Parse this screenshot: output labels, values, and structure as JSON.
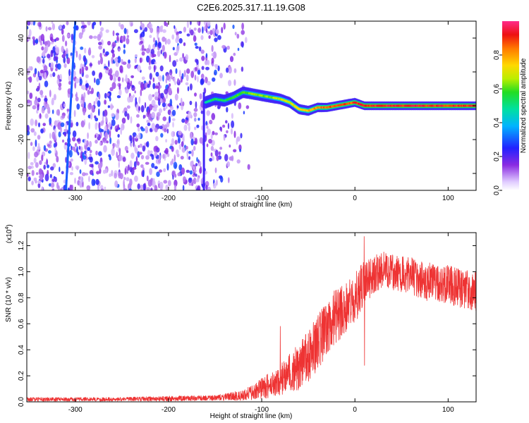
{
  "title": "C2E6.2025.317.11.19.G08",
  "chart_data": [
    {
      "type": "heatmap",
      "name": "spectrogram",
      "xlabel": "Height of straight line (km)",
      "ylabel": "Frequency (Hz)",
      "xlim": [
        -352,
        130
      ],
      "ylim": [
        -50,
        50
      ],
      "x_ticks": [
        -300,
        -200,
        -100,
        0,
        100
      ],
      "y_ticks": [
        -40,
        -20,
        0,
        20,
        40
      ],
      "colorbar": {
        "label": "Normalized spectral amplitude",
        "range": [
          0,
          1
        ],
        "ticks": [
          0.0,
          0.2,
          0.4,
          0.6,
          0.8
        ],
        "tick_labels": [
          "0.0",
          "0.2",
          "0.4",
          "0.6",
          "0.8"
        ]
      },
      "ridge": {
        "x": [
          -160,
          -150,
          -140,
          -130,
          -120,
          -110,
          -100,
          -90,
          -80,
          -70,
          -60,
          -50,
          -40,
          -30,
          -20,
          -10,
          0,
          10,
          30,
          60,
          90,
          130
        ],
        "y": [
          2,
          4,
          3,
          5,
          8,
          7,
          6,
          5,
          4,
          2,
          -2,
          -3,
          -1,
          -1,
          0,
          1,
          2,
          0,
          0,
          0,
          0,
          0
        ],
        "amp": [
          0.5,
          0.55,
          0.55,
          0.6,
          0.6,
          0.65,
          0.65,
          0.65,
          0.7,
          0.7,
          0.75,
          0.8,
          0.85,
          0.9,
          0.9,
          0.9,
          0.92,
          0.95,
          0.95,
          0.95,
          0.95,
          0.95
        ]
      },
      "diagonal_streak": {
        "x": [
          -310,
          -300
        ],
        "y": [
          -50,
          50
        ]
      },
      "vertical_streak": {
        "x": -162,
        "y": [
          -50,
          8
        ]
      }
    },
    {
      "type": "line",
      "name": "snr",
      "xlabel": "Height of straight line (km)",
      "ylabel": "SNR (10 * v/v)",
      "scale_label": "(x10",
      "scale_exponent": "4",
      "scale_close": ")",
      "xlim": [
        -352,
        130
      ],
      "ylim": [
        0,
        1.3
      ],
      "x_ticks": [
        -300,
        -200,
        -100,
        0,
        100
      ],
      "y_ticks": [
        0.0,
        0.2,
        0.4,
        0.6,
        0.8,
        1.0,
        1.2
      ],
      "y_tick_labels": [
        "0.0",
        "0.2",
        "0.4",
        "0.6",
        "0.8",
        "1.0",
        "1.2"
      ],
      "series": [
        {
          "name": "SNR",
          "color": "#ee3333",
          "envelope_x": [
            -352,
            -300,
            -250,
            -200,
            -150,
            -120,
            -100,
            -80,
            -70,
            -60,
            -50,
            -40,
            -30,
            -20,
            -10,
            0,
            10,
            20,
            30,
            40,
            60,
            80,
            100,
            110,
            130
          ],
          "envelope_y": [
            0.02,
            0.02,
            0.02,
            0.025,
            0.03,
            0.05,
            0.1,
            0.17,
            0.22,
            0.27,
            0.35,
            0.45,
            0.55,
            0.66,
            0.73,
            0.8,
            0.9,
            0.98,
            1.02,
            1.0,
            0.96,
            0.92,
            0.9,
            0.88,
            0.85
          ],
          "spread_y": [
            0.015,
            0.015,
            0.015,
            0.02,
            0.02,
            0.04,
            0.08,
            0.12,
            0.15,
            0.18,
            0.2,
            0.22,
            0.22,
            0.22,
            0.2,
            0.2,
            0.18,
            0.15,
            0.14,
            0.14,
            0.15,
            0.15,
            0.15,
            0.15,
            0.15
          ],
          "spikes": [
            {
              "x": -80,
              "y": 0.58
            },
            {
              "x": 10,
              "y": 1.27
            },
            {
              "x": 10,
              "y": 0.28
            }
          ]
        }
      ]
    }
  ]
}
